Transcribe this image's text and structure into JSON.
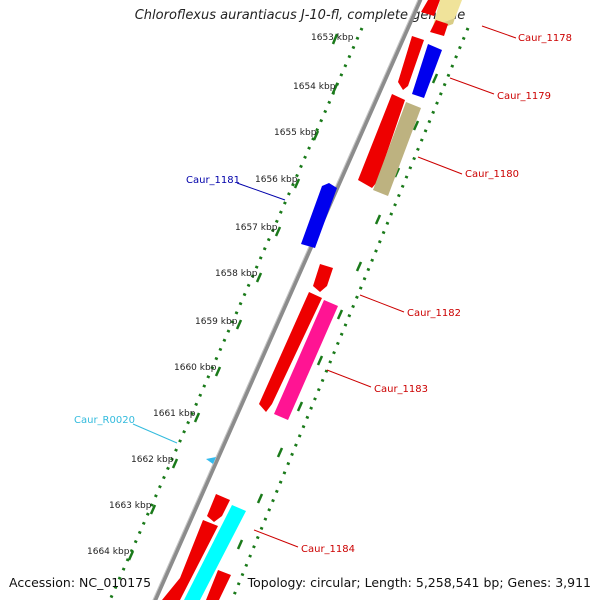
{
  "title": "Chloroflexus aurantiacus J-10-fl, complete genome",
  "footer": {
    "accession": "Accession: NC_010175",
    "topology": "Topology: circular; Length: 5,258,541 bp; Genes: 3,911"
  },
  "colors": {
    "background": "#ffffff",
    "backbone": "#8c8c8c",
    "tick_green": "#1a7a1a",
    "label_red": "#cc0000",
    "label_blue": "#0000aa",
    "label_cyan": "#33bbdd"
  },
  "ruler_ticks": [
    "1653 kbp",
    "1654 kbp",
    "1655 kbp",
    "1656 kbp",
    "1657 kbp",
    "1658 kbp",
    "1659 kbp",
    "1660 kbp",
    "1661 kbp",
    "1662 kbp",
    "1663 kbp",
    "1664 kbp"
  ],
  "features": [
    {
      "id": "Caur_1178",
      "label": "Caur_1178",
      "label_color": "#cc0000",
      "strand": "reverse",
      "color": "#f0e39a"
    },
    {
      "id": "Caur_1179",
      "label": "Caur_1179",
      "label_color": "#cc0000",
      "strand": "reverse",
      "color": "#0000ee"
    },
    {
      "id": "Caur_1180",
      "label": "Caur_1180",
      "label_color": "#cc0000",
      "strand": "reverse",
      "color": "#bdb280"
    },
    {
      "id": "Caur_1181",
      "label": "Caur_1181",
      "label_color": "#0000aa",
      "strand": "forward",
      "color": "#0000ee"
    },
    {
      "id": "Caur_1182",
      "label": "Caur_1182",
      "label_color": "#cc0000",
      "strand": "forward",
      "color": "#ee0000"
    },
    {
      "id": "Caur_1183",
      "label": "Caur_1183",
      "label_color": "#cc0000",
      "strand": "reverse",
      "color": "#ff1493"
    },
    {
      "id": "Caur_R0020",
      "label": "Caur_R0020",
      "label_color": "#33bbdd",
      "strand": "forward",
      "color": "#33bbee"
    },
    {
      "id": "Caur_1184",
      "label": "Caur_1184",
      "label_color": "#cc0000",
      "strand": "reverse",
      "color": "#00ffff"
    }
  ]
}
